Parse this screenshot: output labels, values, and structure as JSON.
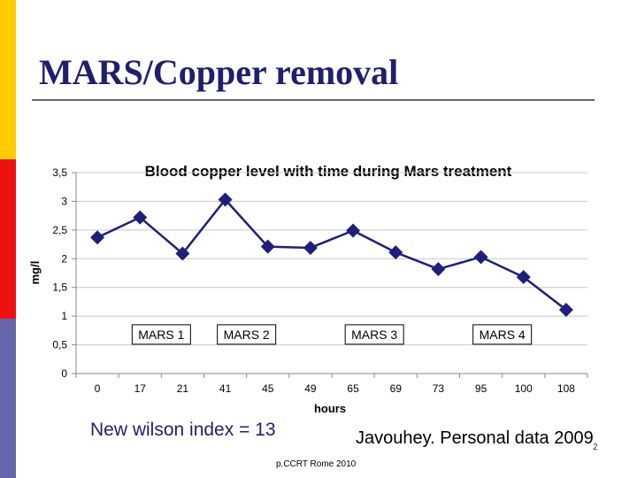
{
  "slide": {
    "title": "MARS/Copper removal",
    "note_left": "New wilson index = 13",
    "note_right": "Javouhey. Personal data 2009",
    "page_number": "2",
    "footer": "p.CCRT Rome 2010"
  },
  "colors": {
    "title": "#1f1f6e",
    "series": "#1f1f7a",
    "accent_yellow": "#ffcc00",
    "accent_red": "#ee1111",
    "accent_blue": "#6666aa"
  },
  "chart_data": {
    "type": "line",
    "title": "Blood copper level with time during Mars treatment",
    "xlabel": "hours",
    "ylabel": "mg/l",
    "categories": [
      "0",
      "17",
      "21",
      "41",
      "45",
      "49",
      "65",
      "69",
      "73",
      "95",
      "100",
      "108"
    ],
    "values": [
      2.37,
      2.72,
      2.09,
      3.03,
      2.21,
      2.19,
      2.49,
      2.11,
      1.82,
      2.03,
      1.68,
      1.11
    ],
    "ylim": [
      0,
      3.5
    ],
    "yticks": [
      "0",
      "0,5",
      "1",
      "1,5",
      "2",
      "2,5",
      "3",
      "3,5"
    ],
    "grid": true,
    "annotations": [
      "MARS 1",
      "MARS 2",
      "MARS 3",
      "MARS 4"
    ],
    "annotation_positions": [
      "17-21",
      "41-45",
      "65-69",
      "95-100"
    ]
  }
}
